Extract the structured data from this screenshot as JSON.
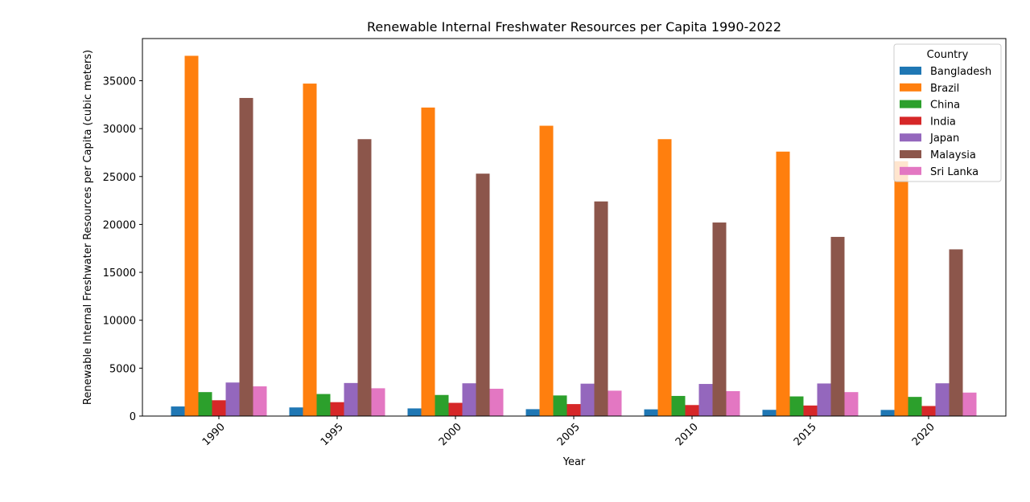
{
  "chart_data": {
    "type": "bar",
    "title": "Renewable Internal Freshwater Resources per Capita 1990-2022",
    "xlabel": "Year",
    "ylabel": "Renewable Internal Freshwater Resources per Capita (cubic meters)",
    "categories": [
      "1990",
      "1995",
      "2000",
      "2005",
      "2010",
      "2015",
      "2020"
    ],
    "yticks": [
      0,
      5000,
      10000,
      15000,
      20000,
      25000,
      30000,
      35000
    ],
    "ylim": [
      0,
      39400
    ],
    "grid": false,
    "legend": {
      "title": "Country",
      "placement": "top-right"
    },
    "series": [
      {
        "name": "Bangladesh",
        "color": "#1f77b4",
        "values": [
          1000,
          900,
          800,
          720,
          700,
          650,
          640
        ]
      },
      {
        "name": "Brazil",
        "color": "#ff7f0e",
        "values": [
          37600,
          34700,
          32200,
          30300,
          28900,
          27600,
          26600
        ]
      },
      {
        "name": "China",
        "color": "#2ca02c",
        "values": [
          2500,
          2300,
          2200,
          2150,
          2100,
          2050,
          2000
        ]
      },
      {
        "name": "India",
        "color": "#d62728",
        "values": [
          1650,
          1450,
          1380,
          1250,
          1150,
          1100,
          1050
        ]
      },
      {
        "name": "Japan",
        "color": "#9467bd",
        "values": [
          3500,
          3450,
          3420,
          3380,
          3350,
          3400,
          3420
        ]
      },
      {
        "name": "Malaysia",
        "color": "#8c564b",
        "values": [
          33200,
          28900,
          25300,
          22400,
          20200,
          18700,
          17400
        ]
      },
      {
        "name": "Sri Lanka",
        "color": "#e377c2",
        "values": [
          3100,
          2900,
          2850,
          2650,
          2600,
          2500,
          2450
        ]
      }
    ]
  }
}
